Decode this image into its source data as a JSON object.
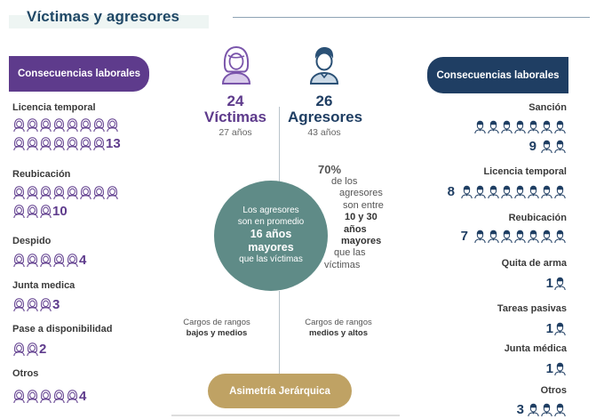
{
  "title": "Víctimas y agresores",
  "left_panel": {
    "header": "Consecuencias laborales",
    "items": [
      {
        "label": "Licencia temporal",
        "value": "13"
      },
      {
        "label": "Reubicación",
        "value": "10"
      },
      {
        "label": "Despido",
        "value": "4"
      },
      {
        "label": "Junta medica",
        "value": "3"
      },
      {
        "label": "Pase a disponibilidad",
        "value": "2"
      },
      {
        "label": "Otros",
        "value": "4"
      }
    ]
  },
  "center": {
    "victims": {
      "count": "24",
      "label": "Víctimas",
      "age": "27 años"
    },
    "aggressors": {
      "count": "26",
      "label": "Agresores",
      "age": "43 años"
    },
    "circle": {
      "line1": "Los agresores",
      "line2": "son en promedio",
      "highlight1": "16 años",
      "highlight2": "mayores",
      "line3": "que las víctimas"
    },
    "stat": {
      "percent": "70%",
      "line1": "de los",
      "line2": "agresores",
      "line3": "son entre",
      "bold1": "10 y 30",
      "bold2": "años",
      "bold3": "mayores",
      "line4": "que las",
      "line5": "víctimas"
    },
    "ranks_left": {
      "line1": "Cargos de rangos",
      "line2": "bajos y medios"
    },
    "ranks_right": {
      "line1": "Cargos de rangos",
      "line2": "medios y altos"
    },
    "asymmetry": "Asimetría Jerárquica"
  },
  "right_panel": {
    "header": "Consecuencias laborales",
    "items": [
      {
        "label": "Sanción",
        "value": "9"
      },
      {
        "label": "Licencia temporal",
        "value": "8"
      },
      {
        "label": "Reubicación",
        "value": "7"
      },
      {
        "label": "Quita de arma",
        "value": "1"
      },
      {
        "label": "Tareas pasivas",
        "value": "1"
      },
      {
        "label": "Junta médica",
        "value": "1"
      },
      {
        "label": "Otros",
        "value": "3"
      }
    ]
  },
  "colors": {
    "victim": "#5e3b8c",
    "aggressor": "#1f3e63",
    "circle": "#5f8b87",
    "asymmetry": "#bfa264"
  },
  "icons": {
    "victim": "woman-icon",
    "aggressor": "man-icon"
  }
}
